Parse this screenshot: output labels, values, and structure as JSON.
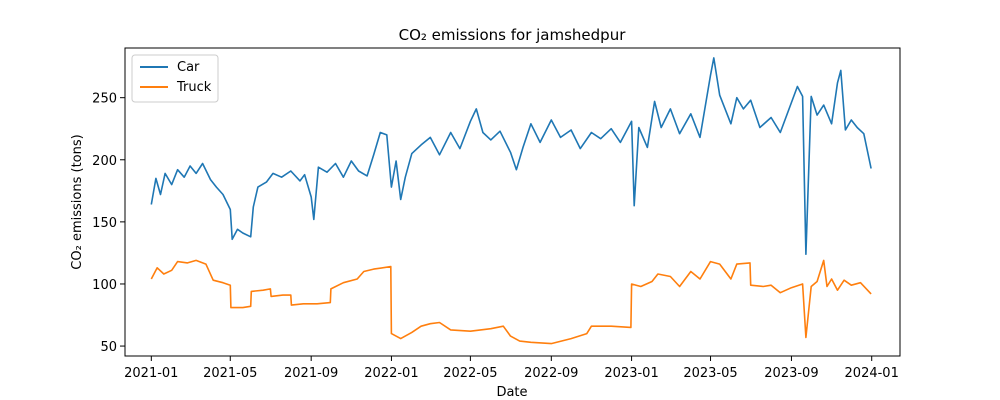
{
  "chart_data": {
    "type": "line",
    "title": "CO₂ emissions for jamshedpur",
    "xlabel": "Date",
    "ylabel": "CO₂ emissions (tons)",
    "xlim": [
      "2020-11-22",
      "2024-02-13"
    ],
    "ylim": [
      42,
      290
    ],
    "xticks": [
      "2021-01",
      "2021-05",
      "2021-09",
      "2022-01",
      "2022-05",
      "2022-09",
      "2023-01",
      "2023-05",
      "2023-09",
      "2024-01"
    ],
    "yticks": [
      50,
      100,
      150,
      200,
      250
    ],
    "grid": false,
    "legend": "top-left",
    "series": [
      {
        "name": "Car",
        "color": "#1f77b4",
        "points": [
          [
            "2021-01-01",
            164
          ],
          [
            "2021-01-08",
            185
          ],
          [
            "2021-01-15",
            172
          ],
          [
            "2021-01-22",
            189
          ],
          [
            "2021-02-01",
            180
          ],
          [
            "2021-02-10",
            192
          ],
          [
            "2021-02-20",
            186
          ],
          [
            "2021-03-01",
            195
          ],
          [
            "2021-03-10",
            189
          ],
          [
            "2021-03-20",
            197
          ],
          [
            "2021-04-01",
            184
          ],
          [
            "2021-04-10",
            178
          ],
          [
            "2021-04-20",
            172
          ],
          [
            "2021-05-01",
            160
          ],
          [
            "2021-05-04",
            136
          ],
          [
            "2021-05-12",
            144
          ],
          [
            "2021-05-20",
            141
          ],
          [
            "2021-06-01",
            138
          ],
          [
            "2021-06-05",
            162
          ],
          [
            "2021-06-12",
            178
          ],
          [
            "2021-06-25",
            182
          ],
          [
            "2021-07-05",
            189
          ],
          [
            "2021-07-18",
            186
          ],
          [
            "2021-08-01",
            191
          ],
          [
            "2021-08-15",
            183
          ],
          [
            "2021-08-22",
            188
          ],
          [
            "2021-09-01",
            170
          ],
          [
            "2021-09-05",
            152
          ],
          [
            "2021-09-12",
            194
          ],
          [
            "2021-09-25",
            190
          ],
          [
            "2021-10-08",
            197
          ],
          [
            "2021-10-20",
            186
          ],
          [
            "2021-11-01",
            199
          ],
          [
            "2021-11-12",
            191
          ],
          [
            "2021-11-25",
            187
          ],
          [
            "2021-12-05",
            204
          ],
          [
            "2021-12-15",
            222
          ],
          [
            "2021-12-25",
            220
          ],
          [
            "2022-01-01",
            178
          ],
          [
            "2022-01-08",
            199
          ],
          [
            "2022-01-15",
            168
          ],
          [
            "2022-01-22",
            186
          ],
          [
            "2022-02-01",
            205
          ],
          [
            "2022-02-15",
            212
          ],
          [
            "2022-03-01",
            218
          ],
          [
            "2022-03-15",
            204
          ],
          [
            "2022-04-01",
            222
          ],
          [
            "2022-04-15",
            209
          ],
          [
            "2022-05-01",
            231
          ],
          [
            "2022-05-10",
            241
          ],
          [
            "2022-05-20",
            222
          ],
          [
            "2022-06-01",
            216
          ],
          [
            "2022-06-15",
            223
          ],
          [
            "2022-07-01",
            206
          ],
          [
            "2022-07-10",
            192
          ],
          [
            "2022-07-20",
            210
          ],
          [
            "2022-08-01",
            229
          ],
          [
            "2022-08-15",
            214
          ],
          [
            "2022-09-01",
            232
          ],
          [
            "2022-09-15",
            218
          ],
          [
            "2022-10-01",
            224
          ],
          [
            "2022-10-15",
            209
          ],
          [
            "2022-11-01",
            222
          ],
          [
            "2022-11-15",
            217
          ],
          [
            "2022-12-01",
            225
          ],
          [
            "2022-12-15",
            214
          ],
          [
            "2023-01-01",
            231
          ],
          [
            "2023-01-05",
            163
          ],
          [
            "2023-01-12",
            226
          ],
          [
            "2023-01-25",
            210
          ],
          [
            "2023-02-05",
            247
          ],
          [
            "2023-02-15",
            226
          ],
          [
            "2023-03-01",
            241
          ],
          [
            "2023-03-15",
            221
          ],
          [
            "2023-04-01",
            237
          ],
          [
            "2023-04-15",
            218
          ],
          [
            "2023-05-01",
            268
          ],
          [
            "2023-05-06",
            282
          ],
          [
            "2023-05-15",
            252
          ],
          [
            "2023-06-01",
            229
          ],
          [
            "2023-06-10",
            250
          ],
          [
            "2023-06-20",
            241
          ],
          [
            "2023-07-01",
            248
          ],
          [
            "2023-07-15",
            226
          ],
          [
            "2023-08-01",
            234
          ],
          [
            "2023-08-15",
            222
          ],
          [
            "2023-09-01",
            246
          ],
          [
            "2023-09-10",
            259
          ],
          [
            "2023-09-18",
            251
          ],
          [
            "2023-09-23",
            124
          ],
          [
            "2023-10-01",
            251
          ],
          [
            "2023-10-10",
            236
          ],
          [
            "2023-10-20",
            244
          ],
          [
            "2023-11-01",
            229
          ],
          [
            "2023-11-10",
            262
          ],
          [
            "2023-11-15",
            272
          ],
          [
            "2023-11-22",
            224
          ],
          [
            "2023-12-01",
            232
          ],
          [
            "2023-12-10",
            226
          ],
          [
            "2023-12-20",
            221
          ],
          [
            "2023-12-31",
            193
          ]
        ]
      },
      {
        "name": "Truck",
        "color": "#ff7f0e",
        "points": [
          [
            "2021-01-01",
            104
          ],
          [
            "2021-01-10",
            113
          ],
          [
            "2021-01-20",
            108
          ],
          [
            "2021-02-01",
            111
          ],
          [
            "2021-02-10",
            118
          ],
          [
            "2021-02-25",
            117
          ],
          [
            "2021-03-10",
            119
          ],
          [
            "2021-03-25",
            116
          ],
          [
            "2021-04-05",
            103
          ],
          [
            "2021-04-20",
            101
          ],
          [
            "2021-05-01",
            99
          ],
          [
            "2021-05-02",
            81
          ],
          [
            "2021-05-20",
            81
          ],
          [
            "2021-06-01",
            82
          ],
          [
            "2021-06-02",
            94
          ],
          [
            "2021-06-20",
            95
          ],
          [
            "2021-07-01",
            96
          ],
          [
            "2021-07-02",
            90
          ],
          [
            "2021-07-20",
            91
          ],
          [
            "2021-08-01",
            91
          ],
          [
            "2021-08-02",
            83
          ],
          [
            "2021-08-20",
            84
          ],
          [
            "2021-09-10",
            84
          ],
          [
            "2021-09-30",
            85
          ],
          [
            "2021-10-01",
            96
          ],
          [
            "2021-10-20",
            101
          ],
          [
            "2021-11-10",
            104
          ],
          [
            "2021-11-20",
            110
          ],
          [
            "2021-12-05",
            112
          ],
          [
            "2021-12-31",
            114
          ],
          [
            "2022-01-01",
            60
          ],
          [
            "2022-01-15",
            56
          ],
          [
            "2022-02-01",
            61
          ],
          [
            "2022-02-15",
            66
          ],
          [
            "2022-03-01",
            68
          ],
          [
            "2022-03-15",
            69
          ],
          [
            "2022-04-01",
            63
          ],
          [
            "2022-05-01",
            62
          ],
          [
            "2022-06-01",
            64
          ],
          [
            "2022-06-20",
            66
          ],
          [
            "2022-07-01",
            58
          ],
          [
            "2022-07-15",
            54
          ],
          [
            "2022-08-01",
            53
          ],
          [
            "2022-09-01",
            52
          ],
          [
            "2022-10-01",
            56
          ],
          [
            "2022-10-25",
            60
          ],
          [
            "2022-11-01",
            66
          ],
          [
            "2022-12-01",
            66
          ],
          [
            "2022-12-31",
            65
          ],
          [
            "2023-01-01",
            100
          ],
          [
            "2023-01-15",
            98
          ],
          [
            "2023-02-01",
            102
          ],
          [
            "2023-02-10",
            108
          ],
          [
            "2023-03-01",
            106
          ],
          [
            "2023-03-15",
            98
          ],
          [
            "2023-04-01",
            110
          ],
          [
            "2023-04-15",
            104
          ],
          [
            "2023-05-01",
            118
          ],
          [
            "2023-05-15",
            116
          ],
          [
            "2023-06-01",
            104
          ],
          [
            "2023-06-10",
            116
          ],
          [
            "2023-06-30",
            117
          ],
          [
            "2023-07-01",
            99
          ],
          [
            "2023-07-20",
            98
          ],
          [
            "2023-08-01",
            99
          ],
          [
            "2023-08-15",
            93
          ],
          [
            "2023-09-01",
            97
          ],
          [
            "2023-09-18",
            100
          ],
          [
            "2023-09-23",
            57
          ],
          [
            "2023-10-01",
            98
          ],
          [
            "2023-10-10",
            102
          ],
          [
            "2023-10-20",
            119
          ],
          [
            "2023-10-25",
            98
          ],
          [
            "2023-11-01",
            104
          ],
          [
            "2023-11-10",
            95
          ],
          [
            "2023-11-20",
            103
          ],
          [
            "2023-12-01",
            99
          ],
          [
            "2023-12-15",
            101
          ],
          [
            "2023-12-31",
            92
          ]
        ]
      }
    ]
  }
}
